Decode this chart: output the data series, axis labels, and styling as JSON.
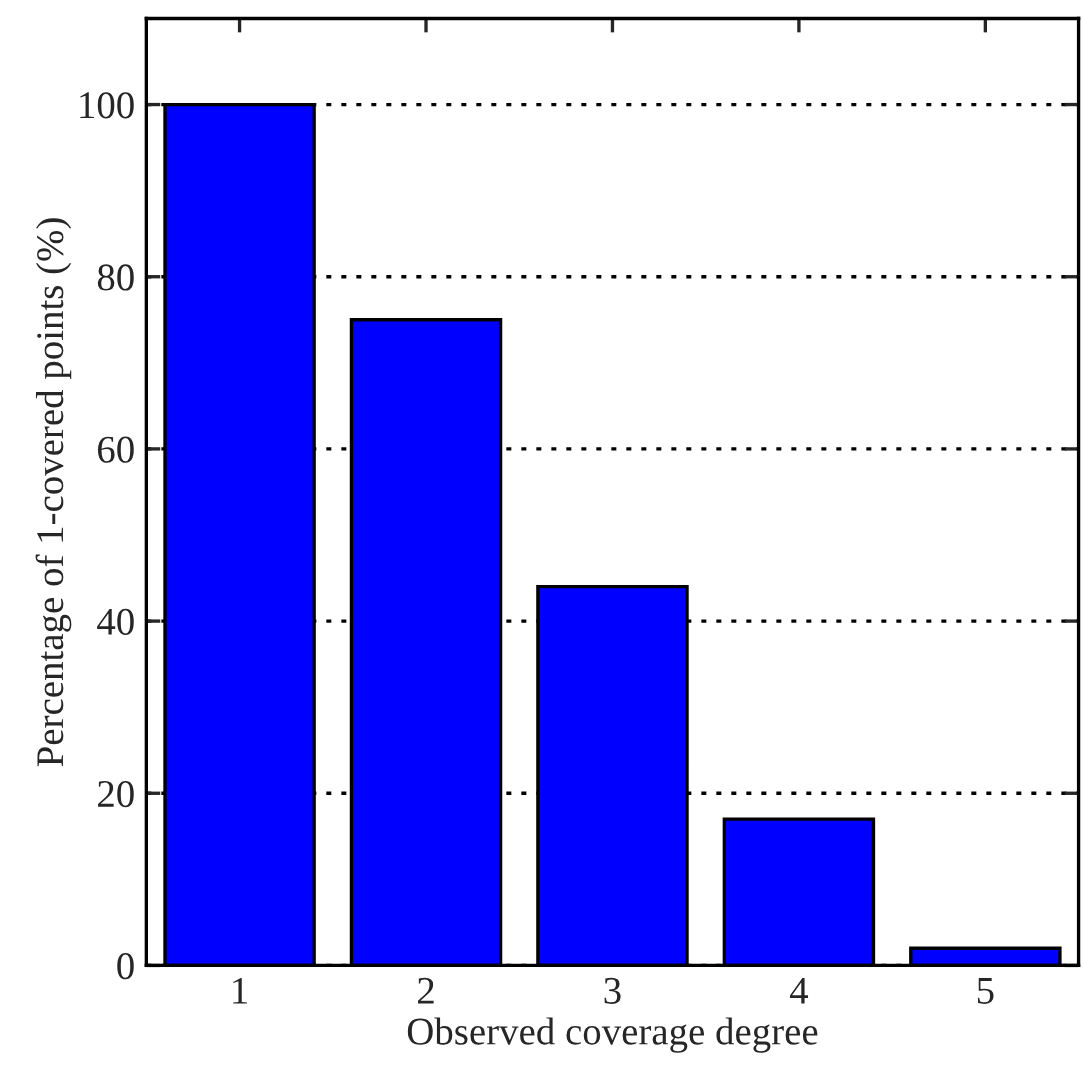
{
  "chart_data": {
    "type": "bar",
    "xlabel": "Observed coverage degree",
    "ylabel": "Percentage of 1-covered points (%)",
    "categories": [
      "1",
      "2",
      "3",
      "4",
      "5"
    ],
    "values": [
      100,
      75,
      44,
      17,
      2
    ],
    "color": "#0000ff",
    "ylim": [
      0,
      110
    ],
    "yticks": [
      0,
      20,
      40,
      60,
      80,
      100
    ],
    "grid": "y"
  }
}
